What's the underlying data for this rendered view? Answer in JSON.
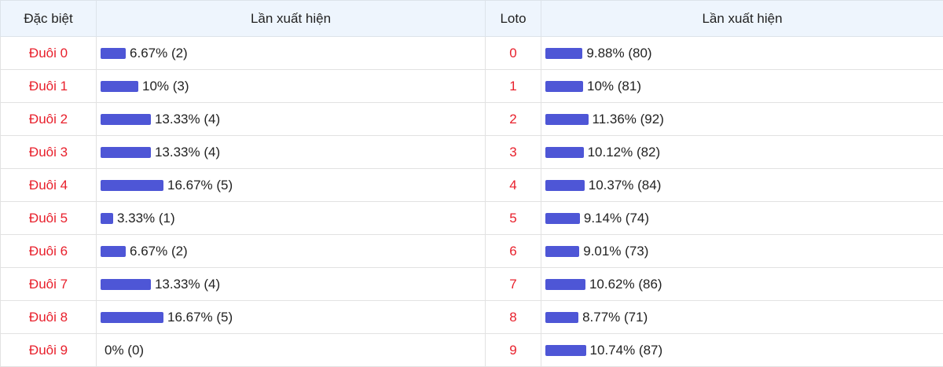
{
  "header": {
    "special": "Đặc biệt",
    "count_left": "Lần xuất hiện",
    "loto": "Loto",
    "count_right": "Lần xuất hiện"
  },
  "left_rows": [
    {
      "label": "Đuôi 0",
      "text": "6.67% (2)",
      "percent": 6.67
    },
    {
      "label": "Đuôi 1",
      "text": "10% (3)",
      "percent": 10
    },
    {
      "label": "Đuôi 2",
      "text": "13.33% (4)",
      "percent": 13.33
    },
    {
      "label": "Đuôi 3",
      "text": "13.33% (4)",
      "percent": 13.33
    },
    {
      "label": "Đuôi 4",
      "text": "16.67% (5)",
      "percent": 16.67
    },
    {
      "label": "Đuôi 5",
      "text": "3.33% (1)",
      "percent": 3.33
    },
    {
      "label": "Đuôi 6",
      "text": "6.67% (2)",
      "percent": 6.67
    },
    {
      "label": "Đuôi 7",
      "text": "13.33% (4)",
      "percent": 13.33
    },
    {
      "label": "Đuôi 8",
      "text": "16.67% (5)",
      "percent": 16.67
    },
    {
      "label": "Đuôi 9",
      "text": "0% (0)",
      "percent": 0
    }
  ],
  "right_rows": [
    {
      "label": "0",
      "text": "9.88% (80)",
      "percent": 9.88
    },
    {
      "label": "1",
      "text": "10% (81)",
      "percent": 10
    },
    {
      "label": "2",
      "text": "11.36% (92)",
      "percent": 11.36
    },
    {
      "label": "3",
      "text": "10.12% (82)",
      "percent": 10.12
    },
    {
      "label": "4",
      "text": "10.37% (84)",
      "percent": 10.37
    },
    {
      "label": "5",
      "text": "9.14% (74)",
      "percent": 9.14
    },
    {
      "label": "6",
      "text": "9.01% (73)",
      "percent": 9.01
    },
    {
      "label": "7",
      "text": "10.62% (86)",
      "percent": 10.62
    },
    {
      "label": "8",
      "text": "8.77% (71)",
      "percent": 8.77
    },
    {
      "label": "9",
      "text": "10.74% (87)",
      "percent": 10.74
    }
  ]
}
